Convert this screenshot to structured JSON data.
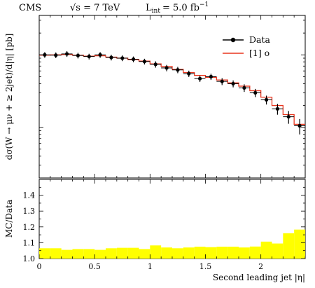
{
  "header": {
    "experiment": "CMS",
    "energy_label": "√s = 7 TeV",
    "lumi_label": "L",
    "lumi_sub": "int",
    "lumi_value": "= 5.0 fb",
    "lumi_sup": "−1"
  },
  "chart_data": [
    {
      "type": "line",
      "ylabel": "dσ(W → μν + ≥ 2jet)/d|η| [pb]",
      "xlim": [
        0,
        2.4
      ],
      "ylog": true,
      "y_tick_labels_shown": false,
      "legend_position": "top-right",
      "legend": [
        "Data",
        "[1] o"
      ],
      "x_bin_edges": [
        0,
        0.1,
        0.2,
        0.3,
        0.4,
        0.5,
        0.6,
        0.7,
        0.8,
        0.9,
        1.0,
        1.1,
        1.2,
        1.3,
        1.4,
        1.5,
        1.6,
        1.7,
        1.8,
        1.9,
        2.0,
        2.1,
        2.2,
        2.3,
        2.4
      ],
      "series": [
        {
          "name": "Data",
          "style": "points-with-errors",
          "color": "#000000",
          "x": [
            0.05,
            0.15,
            0.25,
            0.35,
            0.45,
            0.55,
            0.65,
            0.75,
            0.85,
            0.95,
            1.05,
            1.15,
            1.25,
            1.35,
            1.45,
            1.55,
            1.65,
            1.75,
            1.85,
            1.95,
            2.05,
            2.15,
            2.25,
            2.35
          ],
          "values": [
            1.0,
            0.99,
            1.03,
            0.98,
            0.95,
            1.0,
            0.92,
            0.9,
            0.87,
            0.81,
            0.74,
            0.66,
            0.62,
            0.55,
            0.47,
            0.5,
            0.43,
            0.4,
            0.35,
            0.3,
            0.24,
            0.18,
            0.14,
            0.105
          ],
          "errors": [
            0.09,
            0.09,
            0.09,
            0.09,
            0.09,
            0.09,
            0.09,
            0.09,
            0.09,
            0.09,
            0.1,
            0.1,
            0.1,
            0.1,
            0.1,
            0.1,
            0.11,
            0.11,
            0.12,
            0.13,
            0.14,
            0.17,
            0.2,
            0.24
          ]
        },
        {
          "name": "[1] o",
          "style": "step",
          "color": "#e8361f",
          "values": [
            0.99,
            1.0,
            1.01,
            0.99,
            0.96,
            0.97,
            0.93,
            0.9,
            0.86,
            0.82,
            0.75,
            0.69,
            0.63,
            0.57,
            0.52,
            0.49,
            0.45,
            0.41,
            0.37,
            0.32,
            0.26,
            0.2,
            0.15,
            0.11
          ]
        }
      ]
    },
    {
      "type": "area",
      "ylabel": "MC/Data",
      "xlabel": "Second leading jet |η|",
      "xlim": [
        0,
        2.4
      ],
      "ylim": [
        1.0,
        1.5
      ],
      "x_ticks": [
        "0",
        "0.5",
        "1",
        "1.5",
        "2"
      ],
      "y_ticks": [
        "1.0",
        "1.1",
        "1.2",
        "1.3",
        "1.4"
      ],
      "band_color": "#ffff00",
      "band_upper": [
        1.065,
        1.065,
        1.055,
        1.06,
        1.06,
        1.055,
        1.065,
        1.068,
        1.068,
        1.06,
        1.083,
        1.07,
        1.065,
        1.07,
        1.075,
        1.072,
        1.075,
        1.075,
        1.07,
        1.076,
        1.107,
        1.095,
        1.16,
        1.183
      ],
      "band_lower": [
        1.0,
        1.0,
        1.0,
        1.0,
        1.0,
        1.0,
        1.0,
        1.0,
        1.0,
        1.0,
        1.0,
        1.0,
        1.0,
        1.0,
        1.0,
        1.0,
        1.0,
        1.0,
        1.0,
        1.0,
        1.0,
        1.0,
        1.0,
        1.0
      ]
    }
  ]
}
